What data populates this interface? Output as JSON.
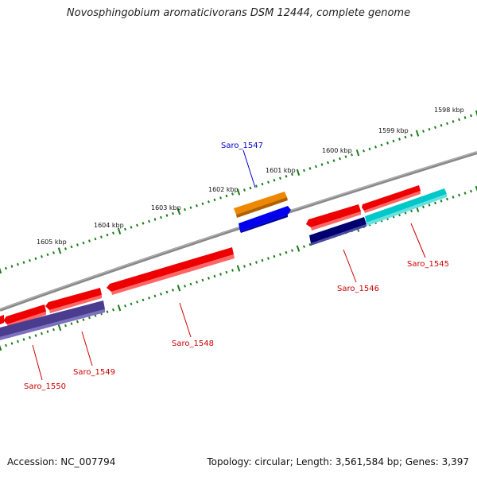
{
  "title": "Novosphingobium aromaticivorans DSM 12444, complete genome",
  "footer": {
    "accession": "Accession: NC_007794",
    "topology": "Topology: circular; Length: 3,561,584 bp; Genes: 3,397"
  },
  "scale_labels": [
    "1598 kbp",
    "1599 kbp",
    "1600 kbp",
    "1601 kbp",
    "1602 kbp",
    "1603 kbp",
    "1604 kbp",
    "1605 kbp"
  ],
  "genes": [
    {
      "name": "Saro_1545",
      "color": "#cc0000"
    },
    {
      "name": "Saro_1546",
      "color": "#cc0000"
    },
    {
      "name": "Saro_1547",
      "color": "#0000cc"
    },
    {
      "name": "Saro_1548",
      "color": "#cc0000"
    },
    {
      "name": "Saro_1549",
      "color": "#cc0000"
    },
    {
      "name": "Saro_1550",
      "color": "#cc0000"
    }
  ],
  "colors": {
    "backbone": "#777777",
    "tick": "#1a7a1a",
    "red_gene": "#ee0000",
    "orange_gene": "#ee8800",
    "blue_gene": "#0000ee",
    "cyan_gene": "#00c8c8",
    "navy_gene": "#000070",
    "purple_gene": "#4a3d8f"
  }
}
